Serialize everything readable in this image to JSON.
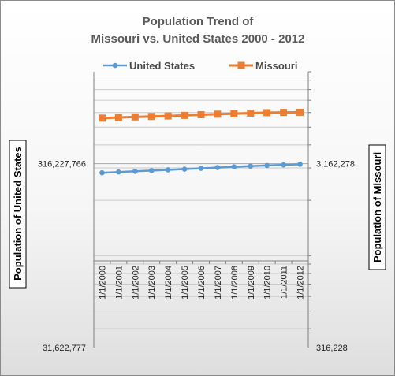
{
  "chart_data": {
    "type": "line",
    "title": [
      "Population Trend of",
      "Missouri vs. United States 2000 - 2012"
    ],
    "categories": [
      "1/1/2000",
      "1/1/2001",
      "1/1/2002",
      "1/1/2003",
      "1/1/2004",
      "1/1/2005",
      "1/1/2006",
      "1/1/2007",
      "1/1/2008",
      "1/1/2009",
      "1/1/2010",
      "1/1/2011",
      "1/1/2012"
    ],
    "left_axis": {
      "title": "Population of United States",
      "scale": "log",
      "range": [
        31622777,
        1000000000
      ],
      "tick_labels": [
        {
          "value": 316227766,
          "label": "316,227,766"
        },
        {
          "value": 31622777,
          "label": "31,622,777"
        }
      ]
    },
    "right_axis": {
      "title": "Population of Missouri",
      "scale": "log",
      "range": [
        316228,
        10000000
      ],
      "tick_labels": [
        {
          "value": 3162278,
          "label": "3,162,278"
        },
        {
          "value": 316228,
          "label": "316,228"
        }
      ]
    },
    "series": [
      {
        "name": "United States",
        "axis": "left",
        "color": "#5b9bd5",
        "marker": "circle",
        "values": [
          282200000,
          285000000,
          287600000,
          290100000,
          292800000,
          295500000,
          298400000,
          301200000,
          304100000,
          306800000,
          309300000,
          311600000,
          313900000
        ]
      },
      {
        "name": "Missouri",
        "axis": "right",
        "color": "#ed7d31",
        "marker": "square",
        "values": [
          5596000,
          5640000,
          5680000,
          5710000,
          5750000,
          5790000,
          5840000,
          5880000,
          5910000,
          5960000,
          5990000,
          6010000,
          6020000
        ]
      }
    ],
    "legend": "top",
    "grid": true
  }
}
